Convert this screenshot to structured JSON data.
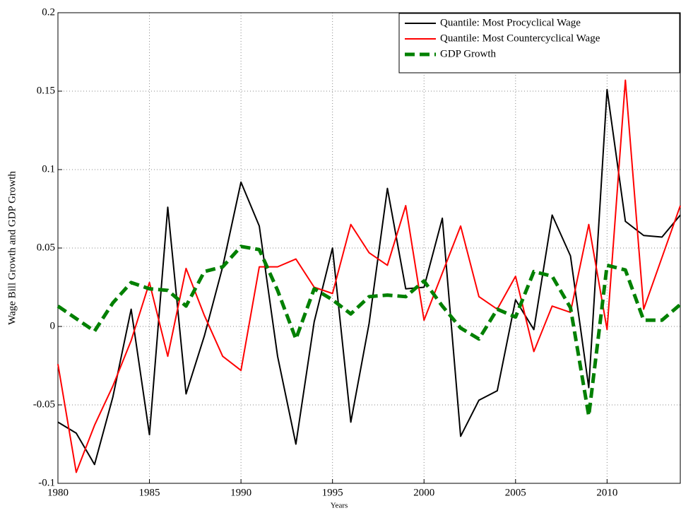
{
  "chart_data": {
    "type": "line",
    "xlabel": "Years",
    "ylabel": "Wage Bill Growth and GDP Growth",
    "x": [
      1980,
      1981,
      1982,
      1983,
      1984,
      1985,
      1986,
      1987,
      1988,
      1989,
      1990,
      1991,
      1992,
      1993,
      1994,
      1995,
      1996,
      1997,
      1998,
      1999,
      2000,
      2001,
      2002,
      2003,
      2004,
      2005,
      2006,
      2007,
      2008,
      2009,
      2010,
      2011,
      2012,
      2013,
      2014
    ],
    "series": [
      {
        "name": "Quantile: Most Procyclical Wage",
        "color": "#000000",
        "dash": "solid",
        "values": [
          -0.061,
          -0.068,
          -0.088,
          -0.045,
          0.011,
          -0.069,
          0.076,
          -0.043,
          -0.006,
          0.038,
          0.092,
          0.064,
          -0.019,
          -0.075,
          0.003,
          0.05,
          -0.061,
          0.002,
          0.088,
          0.024,
          0.025,
          0.069,
          -0.07,
          -0.047,
          -0.041,
          0.017,
          -0.002,
          0.071,
          0.045,
          -0.039,
          0.151,
          0.067,
          0.058,
          0.057,
          0.071
        ]
      },
      {
        "name": "Quantile: Most Countercyclical Wage",
        "color": "#ff0000",
        "dash": "solid",
        "values": [
          -0.024,
          -0.093,
          -0.063,
          -0.038,
          -0.009,
          0.028,
          -0.019,
          0.037,
          0.007,
          -0.019,
          -0.028,
          0.038,
          0.038,
          0.043,
          0.025,
          0.021,
          0.065,
          0.047,
          0.039,
          0.077,
          0.004,
          0.034,
          0.064,
          0.019,
          0.011,
          0.032,
          -0.016,
          0.013,
          0.009,
          0.065,
          -0.002,
          0.157,
          0.011,
          0.044,
          0.077
        ]
      },
      {
        "name": "GDP Growth",
        "color": "#008000",
        "dash": "dashed",
        "values": [
          0.013,
          0.005,
          -0.003,
          0.015,
          0.028,
          0.024,
          0.023,
          0.013,
          0.035,
          0.038,
          0.051,
          0.049,
          0.023,
          -0.008,
          0.024,
          0.017,
          0.008,
          0.019,
          0.02,
          0.019,
          0.029,
          0.013,
          -0.001,
          -0.008,
          0.011,
          0.006,
          0.035,
          0.032,
          0.012,
          -0.057,
          0.039,
          0.036,
          0.004,
          0.004,
          0.014
        ]
      }
    ],
    "xlim": [
      1980,
      2014
    ],
    "xticks": [
      1980,
      1985,
      1990,
      1995,
      2000,
      2005,
      2010
    ],
    "ylim": [
      -0.1,
      0.2
    ],
    "yticks": [
      -0.1,
      -0.05,
      0,
      0.05,
      0.1,
      0.15,
      0.2
    ],
    "grid": true,
    "legend": "top-right"
  }
}
